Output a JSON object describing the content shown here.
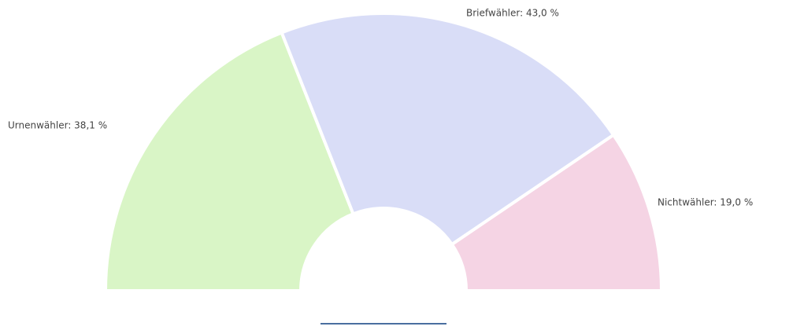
{
  "chart_data": {
    "type": "semi-donut",
    "values": [
      38.1,
      43.0,
      19.0
    ],
    "value_labels": [
      "Urnenwähler: 38,1 %",
      "Briefwähler: 43,0 %",
      "Nichtwähler: 19,0 %"
    ],
    "colors": [
      "#d9f5c6",
      "#d9ddf7",
      "#f5d4e4"
    ]
  }
}
